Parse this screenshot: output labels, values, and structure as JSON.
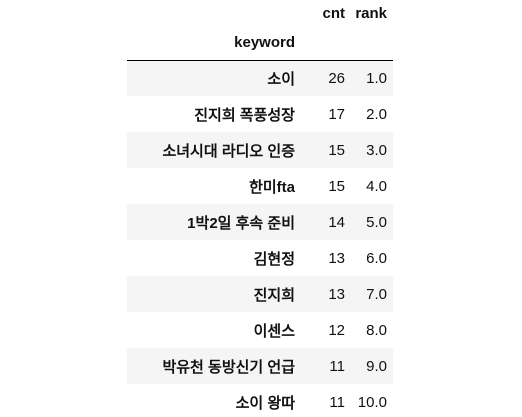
{
  "table": {
    "columns": [
      "cnt",
      "rank"
    ],
    "index_name": "keyword",
    "rows": [
      {
        "keyword": "소이",
        "cnt": "26",
        "rank": "1.0"
      },
      {
        "keyword": "진지희 폭풍성장",
        "cnt": "17",
        "rank": "2.0"
      },
      {
        "keyword": "소녀시대 라디오 인증",
        "cnt": "15",
        "rank": "3.0"
      },
      {
        "keyword": "한미fta",
        "cnt": "15",
        "rank": "4.0"
      },
      {
        "keyword": "1박2일 후속 준비",
        "cnt": "14",
        "rank": "5.0"
      },
      {
        "keyword": "김현정",
        "cnt": "13",
        "rank": "6.0"
      },
      {
        "keyword": "진지희",
        "cnt": "13",
        "rank": "7.0"
      },
      {
        "keyword": "이센스",
        "cnt": "12",
        "rank": "8.0"
      },
      {
        "keyword": "박유천 동방신기 언급",
        "cnt": "11",
        "rank": "9.0"
      },
      {
        "keyword": "소이 왕따",
        "cnt": "11",
        "rank": "10.0"
      }
    ]
  },
  "colors": {
    "stripe": "#f5f5f5",
    "text": "#111111",
    "rule": "#000000"
  }
}
